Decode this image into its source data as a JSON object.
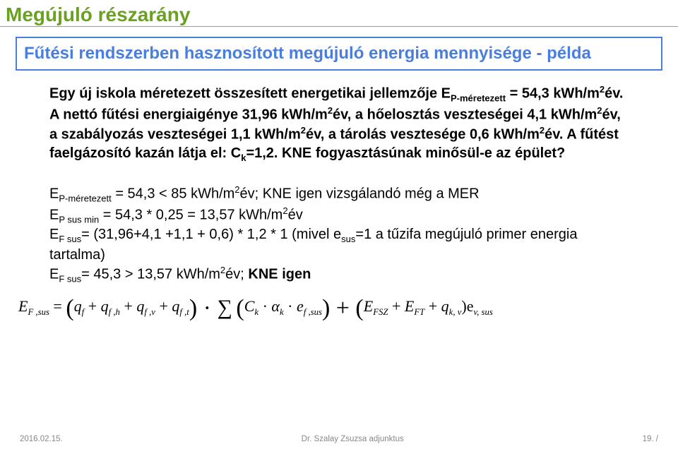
{
  "header": {
    "title": "Megújuló részarány"
  },
  "title_box": "Fűtési rendszerben hasznosított megújuló energia mennyisége - példa",
  "para1": {
    "l1a": "Egy új iskola méretezett összesített energetikai jellemzője E",
    "l1sub": "P-méretezett",
    "l2a": "= 54,3 kWh/m",
    "sup2": "2",
    "l2b": "év. A nettó fűtési energiaigénye 31,96 kWh/m",
    "l2c": "év, a hőelosztás veszteségei 4,1 kWh/m",
    "l2d": "év, a szabályozás veszteségei 1,1 kWh/m",
    "l2e": "év, a tárolás vesztesége 0,6 kWh/m",
    "l2f": "év. A fűtést faelgázosító kazán látja el: C",
    "cksub": "k",
    "l2g": "=1,2. KNE fogyasztásúnak minősül-e az épület?"
  },
  "para2": {
    "a1": "E",
    "a1sub": "P-méretezett",
    "a2": " = 54,3 < 85 kWh/m",
    "a3": "év; KNE igen vizsgálandó még a MER",
    "b1": "E",
    "b1sub": "P sus min",
    "b2": " = 54,3 * 0,25 = 13,57 kWh/m",
    "b3": "év",
    "c1": "E",
    "c1sub": "F sus",
    "c2": "= (31,96+4,1 +1,1 + 0,6) * 1,2 * 1 (mivel e",
    "c2sub": "sus",
    "c3": "=1 a tűzifa megújuló primer energia tartalma)",
    "d1": "E",
    "d1sub": "F sus",
    "d2": "= 45,3 > 13,57 kWh/m",
    "d3": "év; ",
    "d4": "KNE igen"
  },
  "formula": {
    "E": "E",
    "Fsus": "F ,sus",
    "eq": " = ",
    "lp": "(",
    "q": "q",
    "f": "f",
    "plus": " + ",
    "fh": "f ,h",
    "fv": "f ,v",
    "ft": "f ,t",
    "rp": ") · ",
    "sum": "∑",
    "lp2": "(",
    "C": "C",
    "k": "k",
    "mid": " · ",
    "alpha": "α",
    "e": "e",
    "fsus2": "f ,sus",
    "rp2": ") + (",
    "FSZ": "FSZ",
    "FT": "FT",
    "kv": "k, v",
    "tail": ")e",
    "vsus": "v, sus"
  },
  "footer": {
    "date": "2016.02.15.",
    "author": "Dr. Szalay Zsuzsa adjunktus",
    "page": "19. /"
  }
}
